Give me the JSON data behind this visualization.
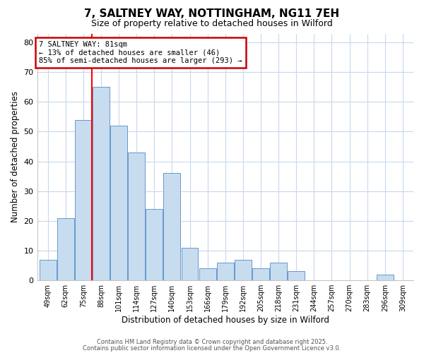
{
  "title_line1": "7, SALTNEY WAY, NOTTINGHAM, NG11 7EH",
  "title_line2": "Size of property relative to detached houses in Wilford",
  "xlabel": "Distribution of detached houses by size in Wilford",
  "ylabel": "Number of detached properties",
  "categories": [
    "49sqm",
    "62sqm",
    "75sqm",
    "88sqm",
    "101sqm",
    "114sqm",
    "127sqm",
    "140sqm",
    "153sqm",
    "166sqm",
    "179sqm",
    "192sqm",
    "205sqm",
    "218sqm",
    "231sqm",
    "244sqm",
    "257sqm",
    "270sqm",
    "283sqm",
    "296sqm",
    "309sqm"
  ],
  "values": [
    7,
    21,
    54,
    65,
    52,
    43,
    24,
    36,
    11,
    4,
    6,
    7,
    4,
    6,
    3,
    0,
    0,
    0,
    0,
    2,
    0
  ],
  "bar_color": "#c8dcf0",
  "bar_edge_color": "#6699cc",
  "red_line_x": 2.5,
  "annotation_text": "7 SALTNEY WAY: 81sqm\n← 13% of detached houses are smaller (46)\n85% of semi-detached houses are larger (293) →",
  "annotation_box_color": "#ffffff",
  "annotation_box_edge_color": "#cc0000",
  "ylim": [
    0,
    83
  ],
  "yticks": [
    0,
    10,
    20,
    30,
    40,
    50,
    60,
    70,
    80
  ],
  "grid_color": "#c8d8ee",
  "background_color": "#ffffff",
  "footer_line1": "Contains HM Land Registry data © Crown copyright and database right 2025.",
  "footer_line2": "Contains public sector information licensed under the Open Government Licence v3.0."
}
